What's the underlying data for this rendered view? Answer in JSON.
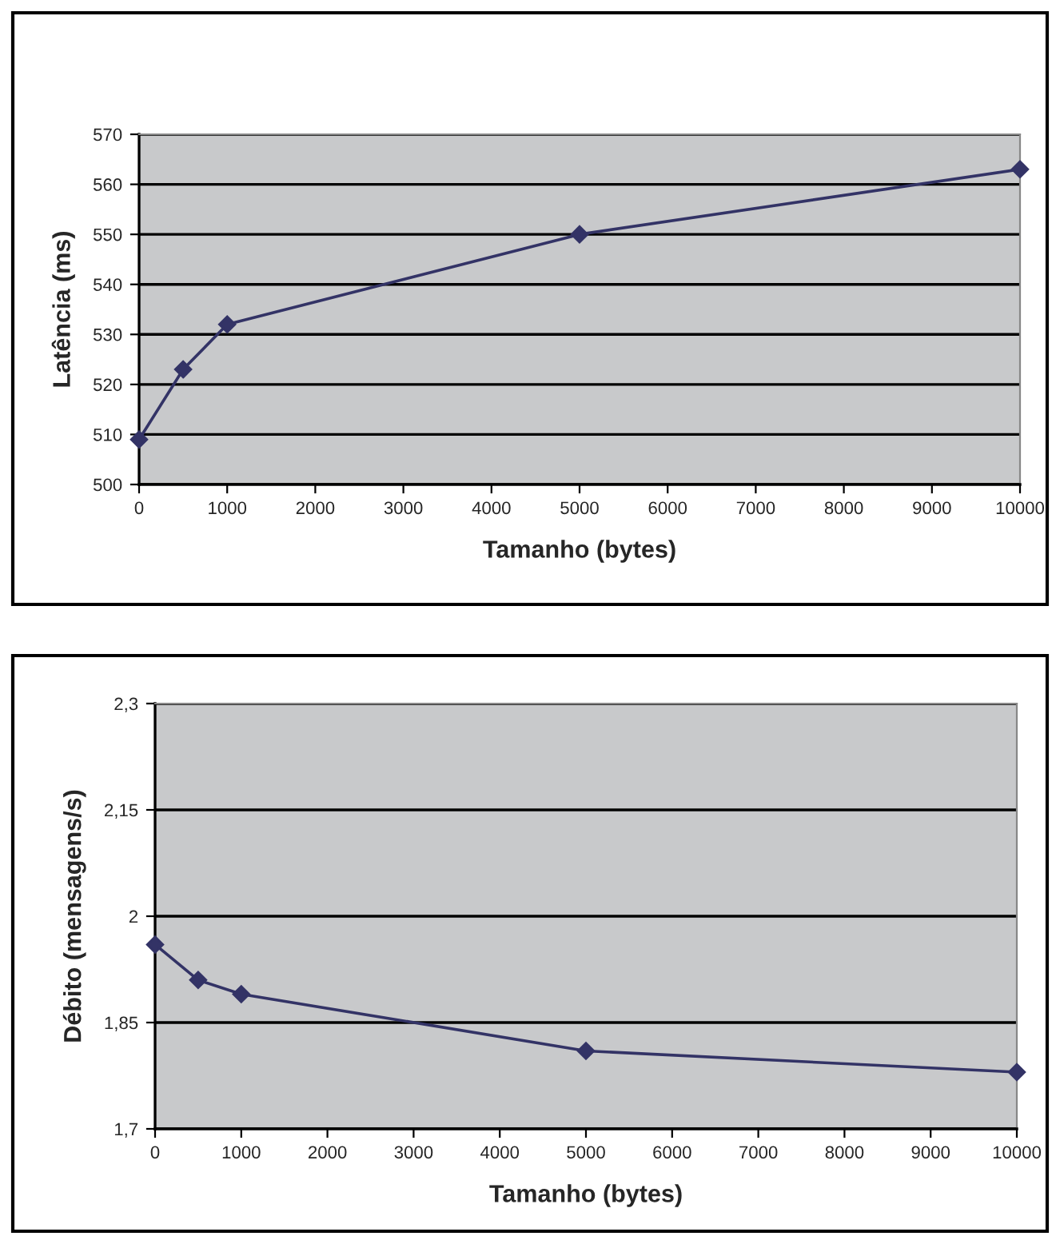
{
  "chart_data": [
    {
      "type": "line",
      "xlabel": "Tamanho (bytes)",
      "ylabel": "Latência (ms)",
      "x": [
        0,
        500,
        1000,
        5000,
        10000
      ],
      "series": [
        {
          "color": "#333366",
          "values": [
            509,
            523,
            532,
            550,
            563
          ]
        }
      ],
      "xlim": [
        0,
        10000
      ],
      "xticks": [
        0,
        1000,
        2000,
        3000,
        4000,
        5000,
        6000,
        7000,
        8000,
        9000,
        10000
      ],
      "ylim": [
        500,
        570
      ],
      "yticks": [
        500,
        510,
        520,
        530,
        540,
        550,
        560,
        570
      ],
      "grid": "y",
      "legend": false,
      "marker": "diamond",
      "line_style": "solid"
    },
    {
      "type": "line",
      "xlabel": "Tamanho (bytes)",
      "ylabel": "Débito (mensagens/s)",
      "x": [
        0,
        500,
        1000,
        5000,
        10000
      ],
      "series": [
        {
          "color": "#333366",
          "values": [
            1.96,
            1.91,
            1.89,
            1.81,
            1.78
          ]
        }
      ],
      "xlim": [
        0,
        10000
      ],
      "xticks": [
        0,
        1000,
        2000,
        3000,
        4000,
        5000,
        6000,
        7000,
        8000,
        9000,
        10000
      ],
      "ylim": [
        1.7,
        2.3
      ],
      "yticks": [
        {
          "value": 1.7,
          "label": "1,7"
        },
        {
          "value": 1.85,
          "label": "1,85"
        },
        {
          "value": 2,
          "label": "2"
        },
        {
          "value": 2.15,
          "label": "2,15"
        },
        {
          "value": 2.3,
          "label": "2,3"
        }
      ],
      "grid": "y",
      "legend": false,
      "marker": "diamond",
      "line_style": "solid"
    }
  ]
}
